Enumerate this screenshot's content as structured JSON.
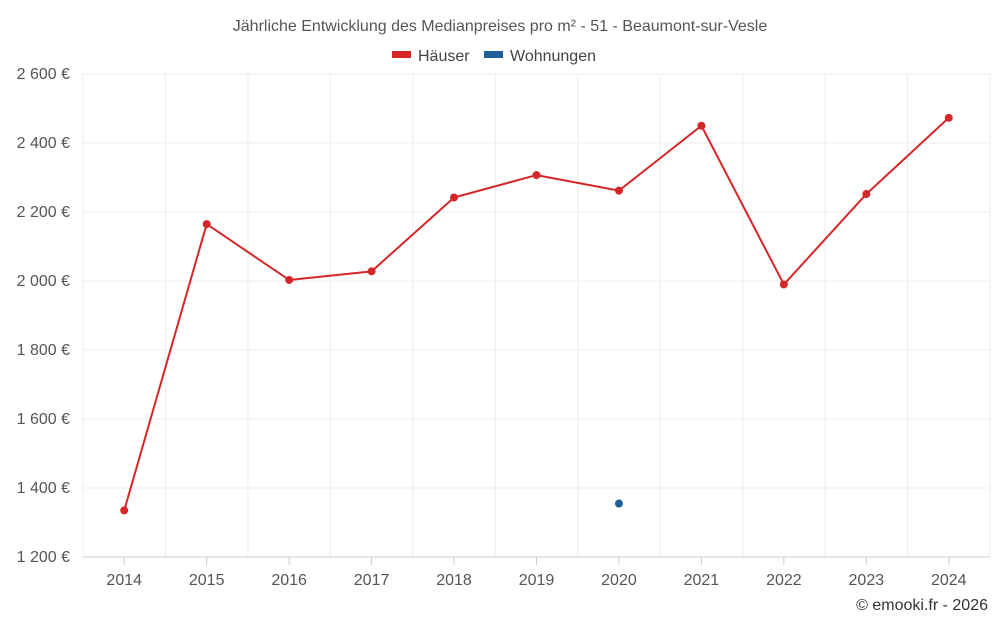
{
  "chart_data": {
    "type": "line",
    "title": "Jährliche Entwicklung des Medianpreises pro m² - 51 - Beaumont-sur-Vesle",
    "categories": [
      "2014",
      "2015",
      "2016",
      "2017",
      "2018",
      "2019",
      "2020",
      "2021",
      "2022",
      "2023",
      "2024"
    ],
    "series": [
      {
        "name": "Häuser",
        "color": "#d62728",
        "values": [
          1335,
          2165,
          2003,
          2028,
          2242,
          2307,
          2262,
          2450,
          1990,
          2252,
          2473
        ]
      },
      {
        "name": "Wohnungen",
        "color": "#1f5f99",
        "values": [
          null,
          null,
          null,
          null,
          null,
          null,
          1355,
          null,
          null,
          null,
          null
        ]
      }
    ],
    "ylim": [
      1200,
      2600
    ],
    "yticks": [
      1200,
      1400,
      1600,
      1800,
      2000,
      2200,
      2400,
      2600
    ],
    "ytick_labels": [
      "1 200 €",
      "1 400 €",
      "1 600 €",
      "1 800 €",
      "2 000 €",
      "2 200 €",
      "2 400 €",
      "2 600 €"
    ],
    "xlabel": "",
    "ylabel": "",
    "grid": true,
    "legend_position": "top-center"
  },
  "credit": "© emooki.fr - 2026"
}
